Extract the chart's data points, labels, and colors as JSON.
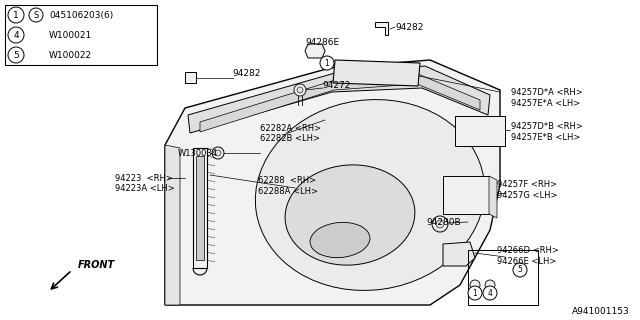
{
  "bg_color": "#ffffff",
  "line_color": "#000000",
  "text_color": "#000000",
  "diagram_number": "A941001153",
  "legend_items": [
    [
      "1",
      "S",
      "045106203(6)"
    ],
    [
      "4",
      "",
      "W100021"
    ],
    [
      "5",
      "",
      "W100022"
    ]
  ]
}
